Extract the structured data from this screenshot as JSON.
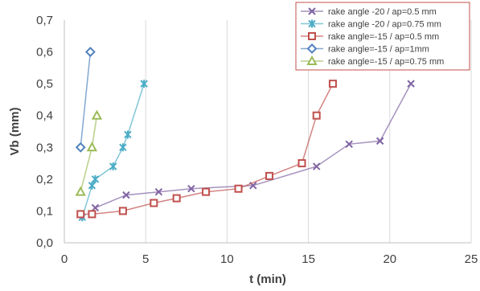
{
  "chart_data": {
    "type": "scatter",
    "xlabel": "t (min)",
    "ylabel": "Vb (mm)",
    "xlim": [
      0,
      25
    ],
    "ylim": [
      0,
      0.7
    ],
    "x_ticks": [
      "0",
      "5",
      "10",
      "15",
      "20",
      "25"
    ],
    "y_ticks": [
      "0,0",
      "0,1",
      "0,2",
      "0,3",
      "0,4",
      "0,5",
      "0,6",
      "0,7"
    ],
    "grid": "vertical",
    "legend_position": "top-right",
    "series": [
      {
        "name": "rake angle -20 / ap=0.5 mm",
        "color": "#8064A2",
        "marker": "x",
        "points": [
          [
            1.9,
            0.11
          ],
          [
            3.8,
            0.15
          ],
          [
            5.8,
            0.16
          ],
          [
            7.8,
            0.17
          ],
          [
            11.6,
            0.18
          ],
          [
            15.5,
            0.24
          ],
          [
            17.5,
            0.31
          ],
          [
            19.4,
            0.32
          ],
          [
            21.3,
            0.5
          ]
        ]
      },
      {
        "name": "rake angle -20 / ap=0.75 mm",
        "color": "#4BACC6",
        "marker": "star",
        "points": [
          [
            1.1,
            0.08
          ],
          [
            1.7,
            0.18
          ],
          [
            1.9,
            0.2
          ],
          [
            3.0,
            0.24
          ],
          [
            3.6,
            0.3
          ],
          [
            3.9,
            0.34
          ],
          [
            4.9,
            0.5
          ]
        ]
      },
      {
        "name": "rake angle=-15 / ap=0.5 mm",
        "color": "#C0504D",
        "marker": "square",
        "points": [
          [
            1.0,
            0.09
          ],
          [
            1.7,
            0.09
          ],
          [
            3.6,
            0.1
          ],
          [
            5.5,
            0.125
          ],
          [
            6.9,
            0.14
          ],
          [
            8.7,
            0.16
          ],
          [
            10.7,
            0.17
          ],
          [
            12.6,
            0.21
          ],
          [
            14.6,
            0.25
          ],
          [
            15.5,
            0.4
          ],
          [
            16.5,
            0.5
          ]
        ]
      },
      {
        "name": "rake angle=-15 / ap=1mm",
        "color": "#4F81BD",
        "marker": "diamond",
        "points": [
          [
            1.0,
            0.3
          ],
          [
            1.6,
            0.6
          ]
        ]
      },
      {
        "name": "rake angle=-15 / ap=0.75 mm",
        "color": "#9BBB59",
        "marker": "triangle",
        "points": [
          [
            1.0,
            0.16
          ],
          [
            1.7,
            0.3
          ],
          [
            2.0,
            0.4
          ]
        ]
      }
    ]
  }
}
